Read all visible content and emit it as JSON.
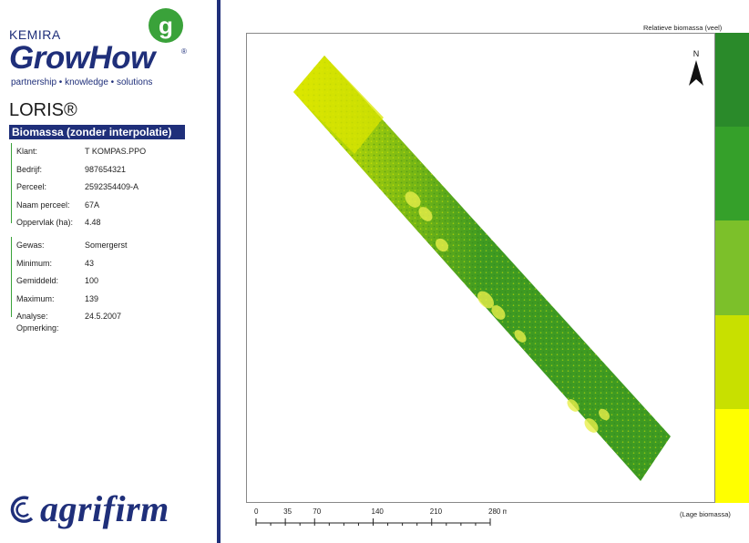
{
  "brand": {
    "company": "KEMIRA",
    "logo_text": "GrowHow",
    "registered": "®",
    "logo_mark": "g",
    "tagline": "partnership • knowledge • solutions"
  },
  "product": {
    "name": "LORIS®",
    "report_title": "Biomassa (zonder interpolatie)"
  },
  "field_info": [
    {
      "label": "Klant:",
      "value": "T KOMPAS.PPO"
    },
    {
      "label": "Bedrijf:",
      "value": "987654321"
    },
    {
      "label": "Perceel:",
      "value": "2592354409-A"
    },
    {
      "label": "Naam perceel:",
      "value": "67A"
    },
    {
      "label": "Oppervlak (ha):",
      "value": "4.48"
    }
  ],
  "crop_info": [
    {
      "label": "Gewas:",
      "value": "Somergerst"
    },
    {
      "label": "Minimum:",
      "value": "43"
    },
    {
      "label": "Gemiddeld:",
      "value": "100"
    },
    {
      "label": "Maximum:",
      "value": "139"
    },
    {
      "label": "Analyse:",
      "value": "24.5.2007"
    }
  ],
  "remark_label": "Opmerking:",
  "partner": {
    "name": "agrifirm"
  },
  "map": {
    "north_label": "N",
    "legend_title": "Relatieve biomassa (veel)",
    "legend_low": "(Lage biomassa)",
    "legend_colors": [
      "#2a8a2a",
      "#35a02a",
      "#7cc02a",
      "#c8e000",
      "#ffff00"
    ],
    "field_color_dark": "#3e9a22",
    "field_color_light": "#d8e800"
  },
  "scale": {
    "ticks": [
      "0",
      "35",
      "70",
      "140",
      "210",
      "280 m"
    ],
    "tick_values": [
      0,
      35,
      70,
      140,
      210,
      280
    ],
    "max": 280
  }
}
